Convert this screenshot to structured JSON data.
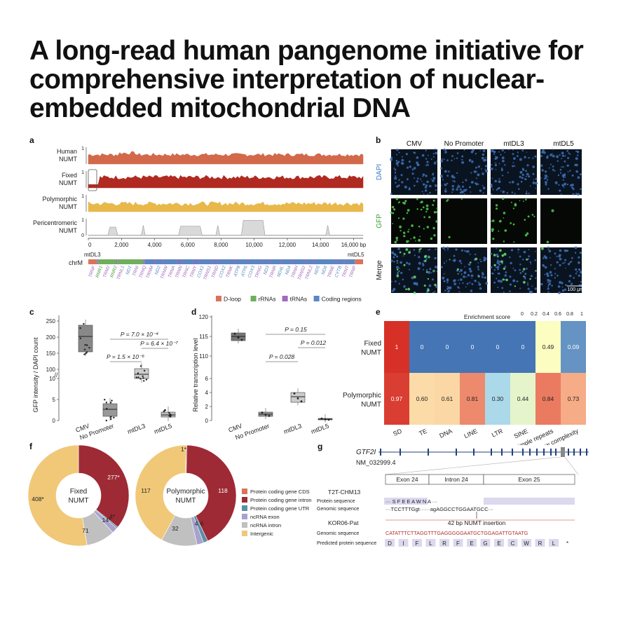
{
  "title": {
    "line1": "A long-read human pangenome initiative for",
    "line2": "comprehensive interpretation of nuclear-",
    "line3": "embedded mitochondrial DNA"
  },
  "panel_a": {
    "letter": "a",
    "tracks": [
      {
        "name1": "Human",
        "name2": "NUMT",
        "color": "#d2694a"
      },
      {
        "name1": "Fixed",
        "name2": "NUMT",
        "color": "#b02a22"
      },
      {
        "name1": "Polymorphic",
        "name2": "NUMT",
        "color": "#e8b84a"
      },
      {
        "name1": "Pericentromeric",
        "name2": "NUMT",
        "color": "#d9d9d9"
      }
    ],
    "tick_one": "1",
    "tick_zero": "0",
    "x_ticks": [
      "0",
      "2,000",
      "4,000",
      "6,000",
      "8,000",
      "10,000",
      "12,000",
      "14,000",
      "16,000 bp"
    ],
    "mtdl3": "mtDL3",
    "mtdl5": "mtDL5",
    "chrm": "chrM",
    "genes": [
      "TRNF",
      "RNR1",
      "TRNV",
      "RNR2",
      "TRNL1",
      "ND1",
      "TRNI",
      "TRNQ",
      "TRNM",
      "ND2",
      "TRNW",
      "TRNA",
      "TRNN",
      "TRNC",
      "TRNY",
      "COX1",
      "TRNS1",
      "TRND",
      "COX2",
      "TRNK",
      "ATP8",
      "ATP6",
      "COX3",
      "TRNG",
      "ND3",
      "TRNR",
      "ND4L",
      "ND4",
      "TRNH",
      "TRNS2",
      "TRNL2",
      "ND5",
      "ND6",
      "TRNE",
      "CYTB",
      "TRNT",
      "TRNP"
    ],
    "legend": [
      {
        "label": "D-loop",
        "color": "#d9735a"
      },
      {
        "label": "rRNAs",
        "color": "#6fae5c"
      },
      {
        "label": "tRNAs",
        "color": "#a06ac0"
      },
      {
        "label": "Coding regions",
        "color": "#5a86c2"
      }
    ]
  },
  "panel_b": {
    "letter": "b",
    "cols": [
      "CMV",
      "No Promoter",
      "mtDL3",
      "mtDL5"
    ],
    "rows": [
      {
        "label": "DAPI",
        "color": "#3a78c4"
      },
      {
        "label": "GFP",
        "color": "#33a033"
      },
      {
        "label": "Merge",
        "color": "#222222"
      }
    ],
    "scale": "100 μm"
  },
  "panel_c": {
    "letter": "c",
    "ylabel": "GFP intensity / DAPI count",
    "yticks": [
      "0",
      "5",
      "10",
      "100",
      "150",
      "200",
      "250"
    ],
    "categories": [
      "CMV",
      "No Promoter",
      "mtDL3",
      "mtDL5"
    ],
    "pvals": [
      "P = 7.0 × 10⁻⁴",
      "P = 6.4 × 10⁻⁷",
      "P = 1.5 × 10⁻⁶"
    ]
  },
  "panel_d": {
    "letter": "d",
    "ylabel": "Relative transcription level",
    "yticks": [
      "0",
      "2",
      "4",
      "6",
      "110",
      "115",
      "120"
    ],
    "categories": [
      "CMV",
      "No Promoter",
      "mtDL3",
      "mtDL5"
    ],
    "pvals": [
      "P = 0.15",
      "P = 0.012",
      "P = 0.028"
    ]
  },
  "panel_e": {
    "letter": "e",
    "scale_title": "Enrichment score",
    "scale_ticks": [
      "0",
      "0.2",
      "0.4",
      "0.6",
      "0.8",
      "1"
    ],
    "rows": [
      {
        "name1": "Fixed",
        "name2": "NUMT",
        "values": [
          "1",
          "0",
          "0",
          "0",
          "0",
          "0",
          "0.49",
          "0.09"
        ]
      },
      {
        "name1": "Polymorphic",
        "name2": "NUMT",
        "values": [
          "0.97",
          "0.60",
          "0.61",
          "0.81",
          "0.30",
          "0.44",
          "0.84",
          "0.73"
        ]
      }
    ],
    "cols": [
      "SD",
      "TE",
      "DNA",
      "LINE",
      "LTR",
      "SINE",
      "Simple repeats",
      "Low complexity"
    ]
  },
  "panel_f": {
    "letter": "f",
    "donuts": [
      {
        "name1": "Fixed",
        "name2": "NUMT",
        "labels": [
          "277*",
          "4*",
          "14*",
          "71",
          "408*"
        ]
      },
      {
        "name1": "Polymorphic",
        "name2": "NUMT",
        "labels": [
          "1*",
          "118",
          "4",
          "6",
          "32",
          "117"
        ]
      }
    ],
    "legend": [
      {
        "label": "Protein coding gene CDS",
        "color": "#d9735a"
      },
      {
        "label": "Protein coding gene intron",
        "color": "#9e2a35"
      },
      {
        "label": "Protein coding gene UTR",
        "color": "#5a8fa8"
      },
      {
        "label": "ncRNA exon",
        "color": "#a7a3cc"
      },
      {
        "label": "ncRNA intron",
        "color": "#c0c0c0"
      },
      {
        "label": "Intergenic",
        "color": "#f0c878"
      }
    ]
  },
  "panel_g": {
    "letter": "g",
    "gene": "GTF2I",
    "transcript": "NM_032999.4",
    "exon24": "Exon 24",
    "intron24": "Intron 24",
    "exon25": "Exon 25",
    "ref_name": "T2T-CHM13",
    "protein_label": "Protein sequence",
    "genomic_label": "Genomic sequence",
    "ref_protein": "··· S   F   E                          E   A   W   N   A  ···",
    "ref_genomic": "···TCCTTTGgt······agAGGCCTGGAATGCC···",
    "alt_name": "KOR06-Pat",
    "insertion": "42 bp NUMT insertion",
    "alt_genomic_label": "Genomic sequence",
    "alt_genomic": "CATATTTCTTAGGTTTGAGGGGGAATGCTGGAGATTGTAATG",
    "pred_label": "Predicted protein sequence",
    "pred_protein": [
      "D",
      "I",
      "F",
      "L",
      "R",
      "F",
      "E",
      "G",
      "E",
      "C",
      "W",
      "R",
      "L",
      "*"
    ]
  }
}
